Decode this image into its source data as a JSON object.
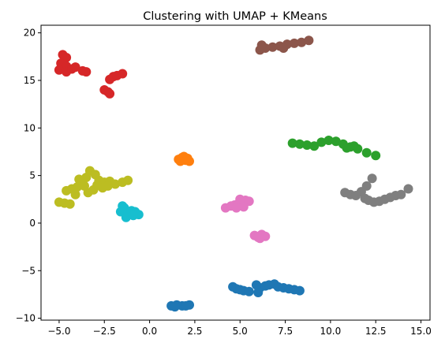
{
  "chart_data": {
    "type": "scatter",
    "title": "Clustering with UMAP + KMeans",
    "xlabel": "",
    "ylabel": "",
    "xlim": [
      -6.0,
      15.5
    ],
    "ylim": [
      -10.2,
      20.8
    ],
    "x_ticks": [
      -5.0,
      -2.5,
      0.0,
      2.5,
      5.0,
      7.5,
      10.0,
      12.5,
      15.0
    ],
    "x_tick_labels": [
      "−5.0",
      "−2.5",
      "0.0",
      "2.5",
      "5.0",
      "7.5",
      "10.0",
      "12.5",
      "15.0"
    ],
    "y_ticks": [
      -10,
      -5,
      0,
      5,
      10,
      15,
      20
    ],
    "y_tick_labels": [
      "−10",
      "−5",
      "0",
      "5",
      "10",
      "15",
      "20"
    ],
    "grid": false,
    "legend": "none",
    "clusters": [
      {
        "color": "#1f77b4",
        "points": [
          [
            1.2,
            -8.7
          ],
          [
            1.5,
            -8.6
          ],
          [
            1.8,
            -8.7
          ],
          [
            2.2,
            -8.6
          ],
          [
            1.4,
            -8.8
          ],
          [
            2.0,
            -8.7
          ],
          [
            4.6,
            -6.7
          ],
          [
            4.8,
            -6.9
          ],
          [
            5.0,
            -7.0
          ],
          [
            5.2,
            -7.1
          ],
          [
            5.5,
            -7.2
          ],
          [
            5.9,
            -6.5
          ],
          [
            6.1,
            -6.8
          ],
          [
            6.0,
            -7.3
          ],
          [
            6.4,
            -6.6
          ],
          [
            6.6,
            -6.5
          ],
          [
            6.9,
            -6.4
          ],
          [
            7.1,
            -6.7
          ],
          [
            7.4,
            -6.8
          ],
          [
            7.7,
            -6.9
          ],
          [
            8.0,
            -7.0
          ],
          [
            8.3,
            -7.1
          ]
        ]
      },
      {
        "color": "#ff7f0e",
        "points": [
          [
            1.6,
            6.7
          ],
          [
            1.8,
            6.9
          ],
          [
            2.0,
            6.6
          ],
          [
            2.2,
            6.5
          ],
          [
            1.9,
            7.0
          ],
          [
            1.7,
            6.5
          ],
          [
            2.1,
            6.8
          ]
        ]
      },
      {
        "color": "#2ca02c",
        "points": [
          [
            7.9,
            8.4
          ],
          [
            8.3,
            8.3
          ],
          [
            8.7,
            8.2
          ],
          [
            9.1,
            8.1
          ],
          [
            9.5,
            8.5
          ],
          [
            9.9,
            8.7
          ],
          [
            10.3,
            8.6
          ],
          [
            10.7,
            8.3
          ],
          [
            11.1,
            8.0
          ],
          [
            11.5,
            7.8
          ],
          [
            12.0,
            7.4
          ],
          [
            12.5,
            7.1
          ],
          [
            10.9,
            7.9
          ],
          [
            11.3,
            8.1
          ]
        ]
      },
      {
        "color": "#d62728",
        "points": [
          [
            -4.8,
            17.7
          ],
          [
            -4.6,
            17.4
          ],
          [
            -4.9,
            16.8
          ],
          [
            -4.6,
            16.5
          ],
          [
            -5.0,
            16.1
          ],
          [
            -4.6,
            15.9
          ],
          [
            -4.3,
            16.2
          ],
          [
            -4.1,
            16.4
          ],
          [
            -3.7,
            16.0
          ],
          [
            -3.5,
            15.9
          ],
          [
            -2.2,
            15.1
          ],
          [
            -2.0,
            15.4
          ],
          [
            -1.8,
            15.5
          ],
          [
            -1.5,
            15.7
          ],
          [
            -2.5,
            14.0
          ],
          [
            -2.3,
            13.8
          ],
          [
            -2.2,
            13.6
          ]
        ]
      },
      {
        "color": "#8c564b",
        "points": [
          [
            6.1,
            18.2
          ],
          [
            6.4,
            18.4
          ],
          [
            6.8,
            18.5
          ],
          [
            7.2,
            18.6
          ],
          [
            7.6,
            18.8
          ],
          [
            8.0,
            18.9
          ],
          [
            8.4,
            19.0
          ],
          [
            8.8,
            19.2
          ],
          [
            6.2,
            18.7
          ],
          [
            7.4,
            18.4
          ]
        ]
      },
      {
        "color": "#e377c2",
        "points": [
          [
            4.2,
            1.6
          ],
          [
            4.5,
            1.8
          ],
          [
            4.7,
            1.9
          ],
          [
            4.9,
            2.0
          ],
          [
            5.1,
            2.2
          ],
          [
            5.3,
            2.4
          ],
          [
            5.5,
            2.3
          ],
          [
            4.8,
            1.6
          ],
          [
            5.2,
            1.7
          ],
          [
            5.0,
            2.5
          ]
        ]
      },
      {
        "color": "#7f7f7f",
        "points": [
          [
            10.8,
            3.2
          ],
          [
            11.1,
            3.0
          ],
          [
            11.4,
            2.9
          ],
          [
            11.7,
            3.3
          ],
          [
            11.9,
            2.6
          ],
          [
            12.1,
            2.4
          ],
          [
            12.4,
            2.2
          ],
          [
            12.7,
            2.3
          ],
          [
            13.0,
            2.5
          ],
          [
            13.3,
            2.7
          ],
          [
            13.6,
            2.9
          ],
          [
            13.9,
            3.0
          ],
          [
            14.3,
            3.6
          ],
          [
            12.3,
            4.7
          ],
          [
            12.0,
            3.9
          ]
        ]
      },
      {
        "color": "#bcbd22",
        "points": [
          [
            -5.0,
            2.2
          ],
          [
            -4.7,
            2.1
          ],
          [
            -4.4,
            2.0
          ],
          [
            -4.6,
            3.4
          ],
          [
            -4.3,
            3.6
          ],
          [
            -4.0,
            3.8
          ],
          [
            -3.7,
            4.2
          ],
          [
            -3.9,
            4.6
          ],
          [
            -3.5,
            4.8
          ],
          [
            -3.3,
            5.5
          ],
          [
            -3.0,
            5.1
          ],
          [
            -2.8,
            4.5
          ],
          [
            -2.5,
            4.3
          ],
          [
            -2.2,
            4.4
          ],
          [
            -1.9,
            4.1
          ],
          [
            -1.5,
            4.3
          ],
          [
            -1.2,
            4.5
          ],
          [
            -3.4,
            3.2
          ],
          [
            -3.1,
            3.5
          ],
          [
            -2.6,
            3.7
          ],
          [
            -2.3,
            3.9
          ],
          [
            -4.1,
            3.0
          ],
          [
            -3.6,
            3.9
          ],
          [
            -2.9,
            4.0
          ]
        ]
      },
      {
        "color": "#17becf",
        "points": [
          [
            -1.6,
            1.2
          ],
          [
            -1.4,
            1.6
          ],
          [
            -1.2,
            1.0
          ],
          [
            -1.0,
            1.3
          ],
          [
            -0.8,
            1.2
          ],
          [
            -0.6,
            0.9
          ],
          [
            -1.3,
            0.6
          ],
          [
            -1.5,
            1.8
          ],
          [
            -0.9,
            0.8
          ]
        ]
      },
      {
        "color": "#e377c2",
        "points": [
          [
            5.8,
            -1.3
          ],
          [
            6.0,
            -1.5
          ],
          [
            6.2,
            -1.2
          ],
          [
            6.4,
            -1.4
          ],
          [
            6.1,
            -1.6
          ]
        ]
      }
    ]
  }
}
